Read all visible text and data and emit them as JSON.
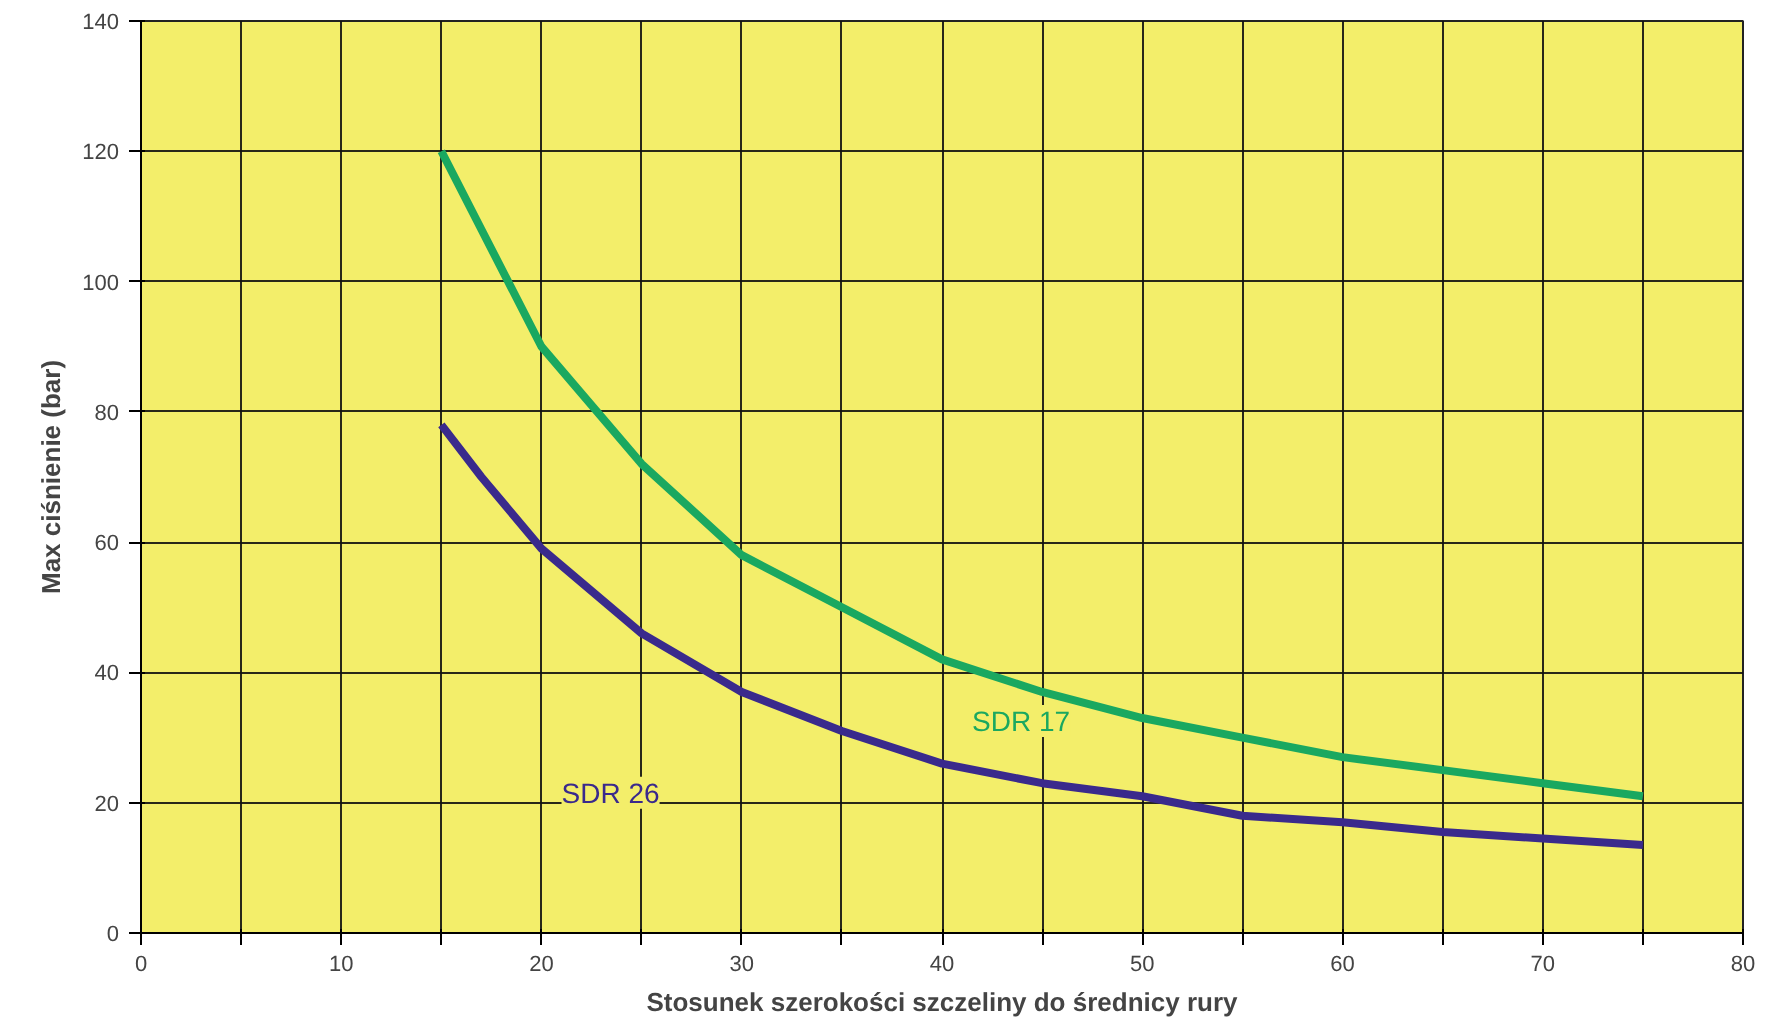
{
  "chart_data": {
    "type": "line",
    "xlabel": "Stosunek szerokości szczeliny do średnicy rury",
    "ylabel": "Max ciśnienie (bar)",
    "xlim": [
      0,
      80
    ],
    "ylim": [
      0,
      140
    ],
    "xticks": [
      0,
      {
        "value": 5,
        "label": null
      },
      10,
      {
        "value": 15,
        "label": null
      },
      20,
      {
        "value": 25,
        "label": null
      },
      30,
      {
        "value": 35,
        "label": null
      },
      40,
      {
        "value": 45,
        "label": null
      },
      50,
      {
        "value": 55,
        "label": null
      },
      60,
      {
        "value": 65,
        "label": null
      },
      70,
      {
        "value": 75,
        "label": null
      },
      80
    ],
    "yticks": [
      0,
      20,
      40,
      60,
      80,
      100,
      120,
      140
    ],
    "grid": true,
    "marker": "none",
    "line_style": "solid",
    "x": [
      15,
      17,
      20,
      25,
      30,
      35,
      40,
      45,
      50,
      55,
      60,
      65,
      70,
      75
    ],
    "series": [
      {
        "name": "SDR 17",
        "color": "#1aa860",
        "values": [
          120,
          108,
          90,
          72,
          58,
          50,
          42,
          37,
          33,
          30,
          27,
          25,
          23,
          21
        ]
      },
      {
        "name": "SDR 26",
        "color": "#3a2a8c",
        "values": [
          78,
          70,
          59,
          46,
          37,
          31,
          26,
          23,
          21,
          18,
          17,
          15.5,
          14.5,
          13.5
        ]
      }
    ]
  }
}
